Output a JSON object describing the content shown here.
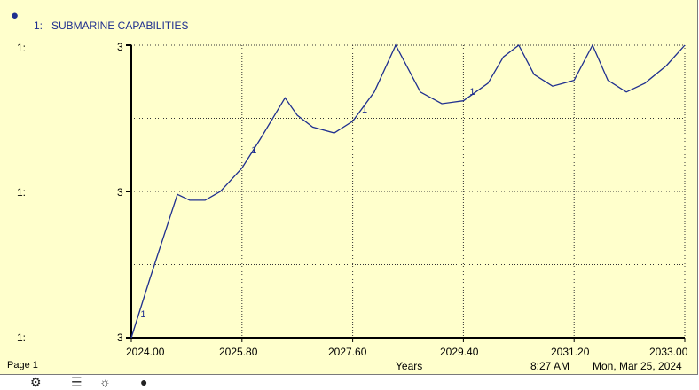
{
  "header": {
    "series_marker": "1:",
    "title": "SUBMARINE CAPABILITIES",
    "icon": "pin-icon"
  },
  "axes": {
    "series_tag": "1:",
    "y_ticks": [
      "3",
      "3",
      "3"
    ],
    "x_ticks": [
      "2024.00",
      "2025.80",
      "2027.60",
      "2029.40",
      "2031.20",
      "2033.00"
    ],
    "x_title": "Years"
  },
  "footer": {
    "page": "Page 1",
    "time": "8:27 AM",
    "date": "Mon, Mar 25, 2024"
  },
  "colors": {
    "background": "#ffffcc",
    "line": "#1f2f8f",
    "grid": "#333333"
  },
  "chart_data": {
    "type": "line",
    "title": "SUBMARINE CAPABILITIES",
    "xlabel": "Years",
    "ylabel": "",
    "xlim": [
      2024.0,
      2033.0
    ],
    "ylim": [
      0,
      1
    ],
    "grid": true,
    "series": [
      {
        "name": "1",
        "x": [
          2024.0,
          2024.3,
          2024.75,
          2024.95,
          2025.2,
          2025.45,
          2025.8,
          2026.1,
          2026.5,
          2026.7,
          2026.95,
          2027.3,
          2027.6,
          2027.95,
          2028.3,
          2028.7,
          2029.05,
          2029.4,
          2029.8,
          2030.05,
          2030.3,
          2030.55,
          2030.85,
          2031.2,
          2031.5,
          2031.75,
          2032.05,
          2032.35,
          2032.7,
          2033.0
        ],
        "y": [
          0.0,
          0.2,
          0.49,
          0.47,
          0.47,
          0.5,
          0.58,
          0.68,
          0.82,
          0.76,
          0.72,
          0.7,
          0.74,
          0.84,
          1.0,
          0.84,
          0.8,
          0.81,
          0.87,
          0.96,
          1.0,
          0.9,
          0.86,
          0.88,
          1.0,
          0.88,
          0.84,
          0.87,
          0.93,
          1.0
        ]
      }
    ],
    "series_markers": [
      {
        "x": 2024.15,
        "y": 0.07
      },
      {
        "x": 2025.95,
        "y": 0.63
      },
      {
        "x": 2027.75,
        "y": 0.77
      },
      {
        "x": 2029.5,
        "y": 0.83
      }
    ]
  }
}
